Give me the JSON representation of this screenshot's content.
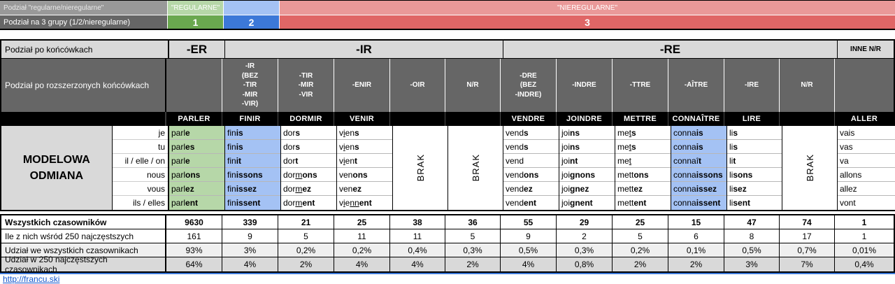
{
  "colors": {
    "green_light": "#b6d7a8",
    "blue_light": "#a4c2f4",
    "red_light": "#ea9999",
    "green": "#6aa84f",
    "blue": "#3c78d8",
    "red": "#e06666",
    "gray_header": "#999999",
    "gray_dark": "#666666",
    "gray_light": "#d9d9d9",
    "gray_lighter": "#efefef",
    "white": "#ffffff",
    "link": "#1155cc",
    "footer_line": "#3c78d8"
  },
  "top": {
    "row1": {
      "label": "Podział \"regularne/nieregularne\"",
      "regular": "\"REGULARNE\"",
      "irregular": "\"NIEREGULARNE\""
    },
    "row2": {
      "label": "Podział na 3 grupy (1/2/nieregularne)",
      "g1": "1",
      "g2": "2",
      "g3": "3"
    }
  },
  "endings": {
    "label": "Podział po końcówkach",
    "er": "-ER",
    "ir": "-IR",
    "re": "-RE",
    "other": "INNE N/R"
  },
  "extended": {
    "label": "Podział po rozszerzonych końcówkach",
    "cells": [
      "",
      "-IR\n(BEZ\n-TIR\n-MIR\n-VIR)",
      "-TIR\n-MIR\n-VIR",
      "-ENIR",
      "-OIR",
      "N/R",
      "-DRE\n(BEZ\n-INDRE)",
      "-INDRE",
      "-TTRE",
      "-AÎTRE",
      "-IRE",
      "N/R",
      ""
    ]
  },
  "verbs": [
    "PARLER",
    "FINIR",
    "DORMIR",
    "VENIR",
    "",
    "",
    "VENDRE",
    "JOINDRE",
    "METTRE",
    "CONNAÎTRE",
    "LIRE",
    "",
    "ALLER"
  ],
  "model": {
    "title": "MODELOWA\nODMIANA",
    "pronouns": [
      "je",
      "tu",
      "il / elle / on",
      "nous",
      "vous",
      "ils / elles"
    ],
    "brak": "BRAK",
    "columns": [
      {
        "fill": "green",
        "forms": [
          [
            [
              "parl",
              ""
            ],
            [
              "e",
              "b"
            ]
          ],
          [
            [
              "parl",
              ""
            ],
            [
              "es",
              "b"
            ]
          ],
          [
            [
              "parl",
              ""
            ],
            [
              "e",
              "b"
            ]
          ],
          [
            [
              "parl",
              ""
            ],
            [
              "ons",
              "b"
            ]
          ],
          [
            [
              "parl",
              ""
            ],
            [
              "ez",
              "b"
            ]
          ],
          [
            [
              "parl",
              ""
            ],
            [
              "ent",
              "b"
            ]
          ]
        ]
      },
      {
        "fill": "blue",
        "forms": [
          [
            [
              "fin",
              ""
            ],
            [
              "is",
              "b"
            ]
          ],
          [
            [
              "fin",
              ""
            ],
            [
              "is",
              "b"
            ]
          ],
          [
            [
              "fin",
              ""
            ],
            [
              "it",
              "b"
            ]
          ],
          [
            [
              "fin",
              ""
            ],
            [
              "issons",
              "b"
            ]
          ],
          [
            [
              "fin",
              ""
            ],
            [
              "issez",
              "b"
            ]
          ],
          [
            [
              "fin",
              ""
            ],
            [
              "issent",
              "b"
            ]
          ]
        ]
      },
      {
        "fill": "white",
        "forms": [
          [
            [
              "dor",
              ""
            ],
            [
              "s",
              "b"
            ]
          ],
          [
            [
              "dor",
              ""
            ],
            [
              "s",
              "b"
            ]
          ],
          [
            [
              "dor",
              ""
            ],
            [
              "t",
              "b"
            ]
          ],
          [
            [
              "dor",
              ""
            ],
            [
              "m",
              "u"
            ],
            [
              "ons",
              "b"
            ]
          ],
          [
            [
              "dor",
              ""
            ],
            [
              "m",
              "u"
            ],
            [
              "ez",
              "b"
            ]
          ],
          [
            [
              "dor",
              ""
            ],
            [
              "m",
              "u"
            ],
            [
              "ent",
              "b"
            ]
          ]
        ]
      },
      {
        "fill": "white",
        "forms": [
          [
            [
              "v",
              ""
            ],
            [
              "i",
              "u"
            ],
            [
              "en",
              ""
            ],
            [
              "s",
              "b"
            ]
          ],
          [
            [
              "v",
              ""
            ],
            [
              "i",
              "u"
            ],
            [
              "en",
              ""
            ],
            [
              "s",
              "b"
            ]
          ],
          [
            [
              "v",
              ""
            ],
            [
              "i",
              "u"
            ],
            [
              "en",
              ""
            ],
            [
              "t",
              "b"
            ]
          ],
          [
            [
              "ven",
              ""
            ],
            [
              "ons",
              "b"
            ]
          ],
          [
            [
              "ven",
              ""
            ],
            [
              "ez",
              "b"
            ]
          ],
          [
            [
              "v",
              ""
            ],
            [
              "i",
              "u"
            ],
            [
              "e",
              ""
            ],
            [
              "nn",
              "u"
            ],
            [
              "ent",
              "b"
            ]
          ]
        ]
      },
      {
        "brak": true
      },
      {
        "brak": true
      },
      {
        "fill": "white",
        "forms": [
          [
            [
              "vend",
              ""
            ],
            [
              "s",
              "b"
            ]
          ],
          [
            [
              "vend",
              ""
            ],
            [
              "s",
              "b"
            ]
          ],
          [
            [
              "vend",
              ""
            ]
          ],
          [
            [
              "vend",
              ""
            ],
            [
              "ons",
              "b"
            ]
          ],
          [
            [
              "vend",
              ""
            ],
            [
              "ez",
              "b"
            ]
          ],
          [
            [
              "vend",
              ""
            ],
            [
              "ent",
              "b"
            ]
          ]
        ]
      },
      {
        "fill": "white",
        "forms": [
          [
            [
              "joi",
              ""
            ],
            [
              "ns",
              "b"
            ]
          ],
          [
            [
              "joi",
              ""
            ],
            [
              "ns",
              "b"
            ]
          ],
          [
            [
              "joi",
              ""
            ],
            [
              "nt",
              "b"
            ]
          ],
          [
            [
              "joi",
              ""
            ],
            [
              "gnons",
              "b"
            ]
          ],
          [
            [
              "joi",
              ""
            ],
            [
              "gnez",
              "b"
            ]
          ],
          [
            [
              "joi",
              ""
            ],
            [
              "gnent",
              "b"
            ]
          ]
        ]
      },
      {
        "fill": "white",
        "forms": [
          [
            [
              "me",
              ""
            ],
            [
              "t",
              "u"
            ],
            [
              "s",
              "b"
            ]
          ],
          [
            [
              "me",
              ""
            ],
            [
              "t",
              "u"
            ],
            [
              "s",
              "b"
            ]
          ],
          [
            [
              "me",
              ""
            ],
            [
              "t",
              "u"
            ]
          ],
          [
            [
              "mett",
              ""
            ],
            [
              "ons",
              "b"
            ]
          ],
          [
            [
              "mett",
              ""
            ],
            [
              "ez",
              "b"
            ]
          ],
          [
            [
              "mett",
              ""
            ],
            [
              "ent",
              "b"
            ]
          ]
        ]
      },
      {
        "fill": "blue",
        "forms": [
          [
            [
              "conna",
              ""
            ],
            [
              "is",
              "b"
            ]
          ],
          [
            [
              "conna",
              ""
            ],
            [
              "is",
              "b"
            ]
          ],
          [
            [
              "connaî",
              ""
            ],
            [
              "t",
              "b"
            ]
          ],
          [
            [
              "conna",
              ""
            ],
            [
              "issons",
              "b"
            ]
          ],
          [
            [
              "conna",
              ""
            ],
            [
              "issez",
              "b"
            ]
          ],
          [
            [
              "conna",
              ""
            ],
            [
              "issent",
              "b"
            ]
          ]
        ]
      },
      {
        "fill": "white",
        "forms": [
          [
            [
              "li",
              ""
            ],
            [
              "s",
              "b"
            ]
          ],
          [
            [
              "li",
              ""
            ],
            [
              "s",
              "b"
            ]
          ],
          [
            [
              "li",
              ""
            ],
            [
              "t",
              "b"
            ]
          ],
          [
            [
              "li",
              ""
            ],
            [
              "sons",
              "b"
            ]
          ],
          [
            [
              "li",
              ""
            ],
            [
              "sez",
              "b"
            ]
          ],
          [
            [
              "li",
              ""
            ],
            [
              "sent",
              "b"
            ]
          ]
        ]
      },
      {
        "brak": true
      },
      {
        "fill": "white",
        "forms": [
          [
            [
              "vais",
              ""
            ]
          ],
          [
            [
              "vas",
              ""
            ]
          ],
          [
            [
              "va",
              ""
            ]
          ],
          [
            [
              "allons",
              ""
            ]
          ],
          [
            [
              "allez",
              ""
            ]
          ],
          [
            [
              "vont",
              ""
            ]
          ]
        ]
      }
    ]
  },
  "stats": [
    {
      "label": "Wszystkich czasowników",
      "bold": true,
      "bg": "white",
      "values": [
        "9630",
        "339",
        "21",
        "25",
        "38",
        "36",
        "55",
        "29",
        "25",
        "15",
        "47",
        "74",
        "1"
      ]
    },
    {
      "label": "Ile z nich wśród 250 najczęstszych",
      "bold": false,
      "bg": "white",
      "values": [
        "161",
        "9",
        "5",
        "11",
        "11",
        "5",
        "9",
        "2",
        "5",
        "6",
        "8",
        "17",
        "1"
      ]
    },
    {
      "label": "Udział we wszystkich czasownikach",
      "bold": false,
      "bg": "gray_lighter",
      "values": [
        "93%",
        "3%",
        "0,2%",
        "0,2%",
        "0,4%",
        "0,3%",
        "0,5%",
        "0,3%",
        "0,2%",
        "0,1%",
        "0,5%",
        "0,7%",
        "0,01%"
      ]
    },
    {
      "label": "Udział w 250 najczęstszych czasownikach",
      "bold": false,
      "bg": "gray_light",
      "values": [
        "64%",
        "4%",
        "2%",
        "4%",
        "4%",
        "2%",
        "4%",
        "0,8%",
        "2%",
        "2%",
        "3%",
        "7%",
        "0,4%"
      ]
    }
  ],
  "footer": {
    "link": "http://francu.ski"
  }
}
